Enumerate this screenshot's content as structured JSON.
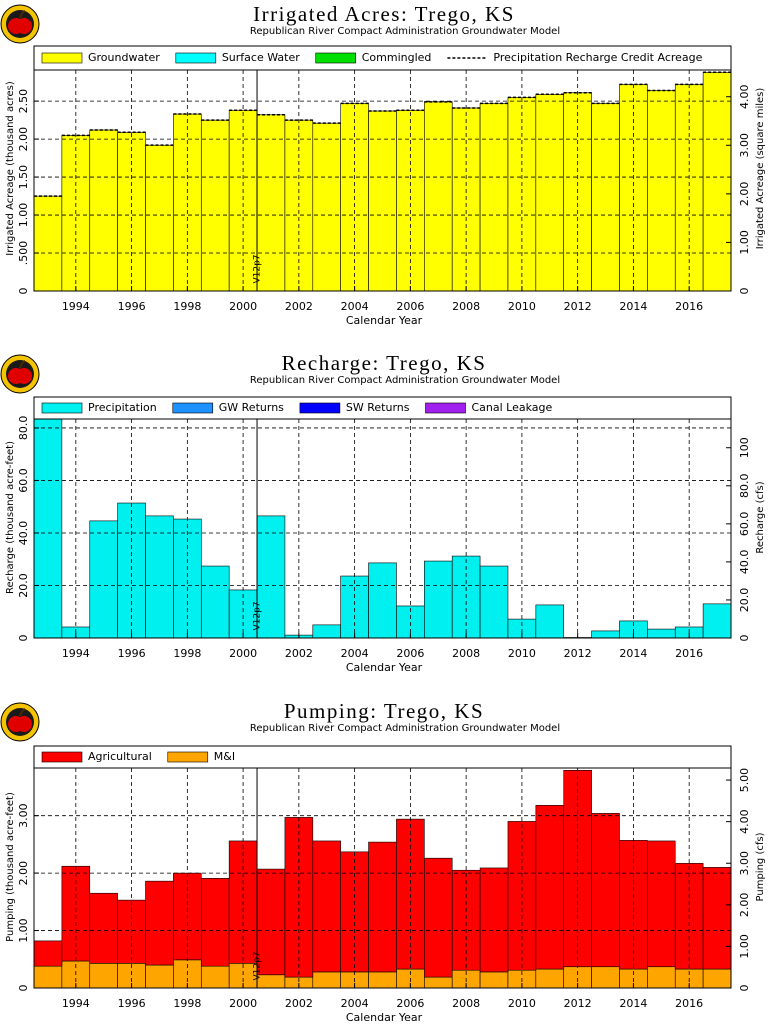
{
  "chart_data": [
    {
      "type": "bar",
      "stacked": true,
      "title": "Irrigated Acres: Trego, KS",
      "subtitle": "Republican River Compact Administration Groundwater Model",
      "xlabel": "Calendar Year",
      "ylabel": "Irrigated Acreage (thousand acres)",
      "y2label": "Irrigated Acreage (square miles)",
      "x": [
        1993,
        1994,
        1995,
        1996,
        1997,
        1998,
        1999,
        2000,
        2001,
        2002,
        2003,
        2004,
        2005,
        2006,
        2007,
        2008,
        2009,
        2010,
        2011,
        2012,
        2013,
        2014,
        2015,
        2016,
        2017
      ],
      "xlim": [
        1992.5,
        2017.5
      ],
      "xticks": [
        1994,
        1996,
        1998,
        2000,
        2002,
        2004,
        2006,
        2008,
        2010,
        2012,
        2014,
        2016
      ],
      "ylim": [
        0,
        2.91
      ],
      "yticks": [
        0,
        {
          "value": 0.5,
          "label": ".500"
        },
        {
          "value": 1,
          "label": "1.00"
        },
        {
          "value": 1.5,
          "label": "1.50"
        },
        {
          "value": 2,
          "label": "2.00"
        },
        {
          "value": 2.5,
          "label": "2.50"
        }
      ],
      "y2lim": [
        0,
        4.55
      ],
      "y2ticks": [
        0,
        {
          "value": 1,
          "label": "1.00"
        },
        {
          "value": 2,
          "label": "2.00"
        },
        {
          "value": 3,
          "label": "3.00"
        },
        {
          "value": 4,
          "label": "4.00"
        }
      ],
      "grid": true,
      "annotation": {
        "text": "V12p7",
        "x": 2000.5
      },
      "series": [
        {
          "name": "Groundwater",
          "color": "#ffff00",
          "values": [
            1.25,
            2.05,
            2.12,
            2.09,
            1.92,
            2.33,
            2.25,
            2.38,
            2.32,
            2.25,
            2.21,
            2.47,
            2.37,
            2.38,
            2.49,
            2.41,
            2.47,
            2.55,
            2.59,
            2.61,
            2.47,
            2.72,
            2.64,
            2.72,
            2.88
          ]
        },
        {
          "name": "Surface Water",
          "color": "#00ffff",
          "values": [
            0,
            0,
            0,
            0,
            0,
            0,
            0,
            0,
            0,
            0,
            0,
            0,
            0,
            0,
            0,
            0,
            0,
            0,
            0,
            0,
            0,
            0,
            0,
            0,
            0
          ]
        },
        {
          "name": "Commingled",
          "color": "#00e000",
          "values": [
            0,
            0,
            0,
            0,
            0,
            0,
            0,
            0,
            0,
            0,
            0,
            0,
            0,
            0,
            0,
            0,
            0,
            0,
            0,
            0,
            0,
            0,
            0,
            0,
            0
          ]
        },
        {
          "name": "Precipitation Recharge Credit Acreage",
          "type": "step",
          "color": "#000000",
          "values": [
            1.25,
            2.05,
            2.12,
            2.09,
            1.92,
            2.33,
            2.25,
            2.38,
            2.32,
            2.25,
            2.21,
            2.47,
            2.37,
            2.38,
            2.49,
            2.41,
            2.47,
            2.55,
            2.59,
            2.61,
            2.47,
            2.72,
            2.64,
            2.72,
            2.88
          ]
        }
      ]
    },
    {
      "type": "bar",
      "stacked": true,
      "title": "Recharge: Trego, KS",
      "subtitle": "Republican River Compact Administration Groundwater Model",
      "xlabel": "Calendar Year",
      "ylabel": "Recharge (thousand acre-feet)",
      "y2label": "Recharge (cfs)",
      "x": [
        1993,
        1994,
        1995,
        1996,
        1997,
        1998,
        1999,
        2000,
        2001,
        2002,
        2003,
        2004,
        2005,
        2006,
        2007,
        2008,
        2009,
        2010,
        2011,
        2012,
        2013,
        2014,
        2015,
        2016,
        2017
      ],
      "xlim": [
        1992.5,
        2017.5
      ],
      "xticks": [
        1994,
        1996,
        1998,
        2000,
        2002,
        2004,
        2006,
        2008,
        2010,
        2012,
        2014,
        2016
      ],
      "ylim": [
        0,
        83.4
      ],
      "yticks": [
        0,
        {
          "value": 20,
          "label": "20.0"
        },
        {
          "value": 40,
          "label": "40.0"
        },
        {
          "value": 60,
          "label": "60.0"
        },
        {
          "value": 80,
          "label": "80.0"
        }
      ],
      "y2lim": [
        0,
        115.1
      ],
      "y2ticks": [
        0,
        {
          "value": 20,
          "label": "20.0"
        },
        {
          "value": 40,
          "label": "40.0"
        },
        {
          "value": 60,
          "label": "60.0"
        },
        {
          "value": 80,
          "label": "80.0"
        },
        100
      ],
      "grid": true,
      "annotation": {
        "text": "V12p7",
        "x": 2000.5
      },
      "series": [
        {
          "name": "Precipitation",
          "color": "#00f0f0",
          "values": [
            83.4,
            4.2,
            44.6,
            51.4,
            46.5,
            45.3,
            27.4,
            18.3,
            46.5,
            1.1,
            5.0,
            23.6,
            28.6,
            12.2,
            29.3,
            31.2,
            27.4,
            7.2,
            12.6,
            0.2,
            2.7,
            6.5,
            3.4,
            4.2,
            13.0
          ]
        },
        {
          "name": "GW Returns",
          "color": "#1e90ff",
          "values": [
            0,
            0,
            0,
            0,
            0,
            0,
            0,
            0,
            0,
            0,
            0,
            0,
            0,
            0,
            0,
            0,
            0,
            0,
            0,
            0,
            0,
            0,
            0,
            0,
            0
          ]
        },
        {
          "name": "SW Returns",
          "color": "#0000ff",
          "values": [
            0,
            0,
            0,
            0,
            0,
            0,
            0,
            0,
            0,
            0,
            0,
            0,
            0,
            0,
            0,
            0,
            0,
            0,
            0,
            0,
            0,
            0,
            0,
            0,
            0
          ]
        },
        {
          "name": "Canal Leakage",
          "color": "#a020f0",
          "values": [
            0,
            0,
            0,
            0,
            0,
            0,
            0,
            0,
            0,
            0,
            0,
            0,
            0,
            0,
            0,
            0,
            0,
            0,
            0,
            0,
            0,
            0,
            0,
            0,
            0
          ]
        }
      ]
    },
    {
      "type": "bar",
      "stacked": true,
      "title": "Pumping: Trego, KS",
      "subtitle": "Republican River Compact Administration Groundwater Model",
      "xlabel": "Calendar Year",
      "ylabel": "Pumping (thousand acre-feet)",
      "y2label": "Pumping (cfs)",
      "x": [
        1993,
        1994,
        1995,
        1996,
        1997,
        1998,
        1999,
        2000,
        2001,
        2002,
        2003,
        2004,
        2005,
        2006,
        2007,
        2008,
        2009,
        2010,
        2011,
        2012,
        2013,
        2014,
        2015,
        2016,
        2017
      ],
      "xlim": [
        1992.5,
        2017.5
      ],
      "xticks": [
        1994,
        1996,
        1998,
        2000,
        2002,
        2004,
        2006,
        2008,
        2010,
        2012,
        2014,
        2016
      ],
      "ylim": [
        0,
        3.83
      ],
      "yticks": [
        0,
        {
          "value": 1,
          "label": "1.00"
        },
        {
          "value": 2,
          "label": "2.00"
        },
        {
          "value": 3,
          "label": "3.00"
        }
      ],
      "y2lim": [
        0,
        5.29
      ],
      "y2ticks": [
        0,
        {
          "value": 1,
          "label": "1.00"
        },
        {
          "value": 2,
          "label": "2.00"
        },
        {
          "value": 3,
          "label": "3.00"
        },
        {
          "value": 4,
          "label": "4.00"
        },
        {
          "value": 5,
          "label": "5.00"
        }
      ],
      "grid": true,
      "annotation": {
        "text": "V12p7",
        "x": 2000.5
      },
      "stack_order": [
        1,
        0
      ],
      "series": [
        {
          "name": "Agricultural",
          "color": "#ff0000",
          "values": [
            0.44,
            1.65,
            1.22,
            1.1,
            1.46,
            1.51,
            1.53,
            2.13,
            1.84,
            2.78,
            2.28,
            2.09,
            2.26,
            2.61,
            2.07,
            1.74,
            1.81,
            2.59,
            2.85,
            3.42,
            2.67,
            2.24,
            2.19,
            1.84,
            1.77
          ]
        },
        {
          "name": "M&I",
          "color": "#ffa500",
          "values": [
            0.38,
            0.47,
            0.43,
            0.43,
            0.4,
            0.49,
            0.38,
            0.43,
            0.23,
            0.19,
            0.28,
            0.28,
            0.28,
            0.33,
            0.19,
            0.31,
            0.28,
            0.31,
            0.33,
            0.37,
            0.37,
            0.33,
            0.37,
            0.33,
            0.33
          ]
        }
      ]
    }
  ]
}
